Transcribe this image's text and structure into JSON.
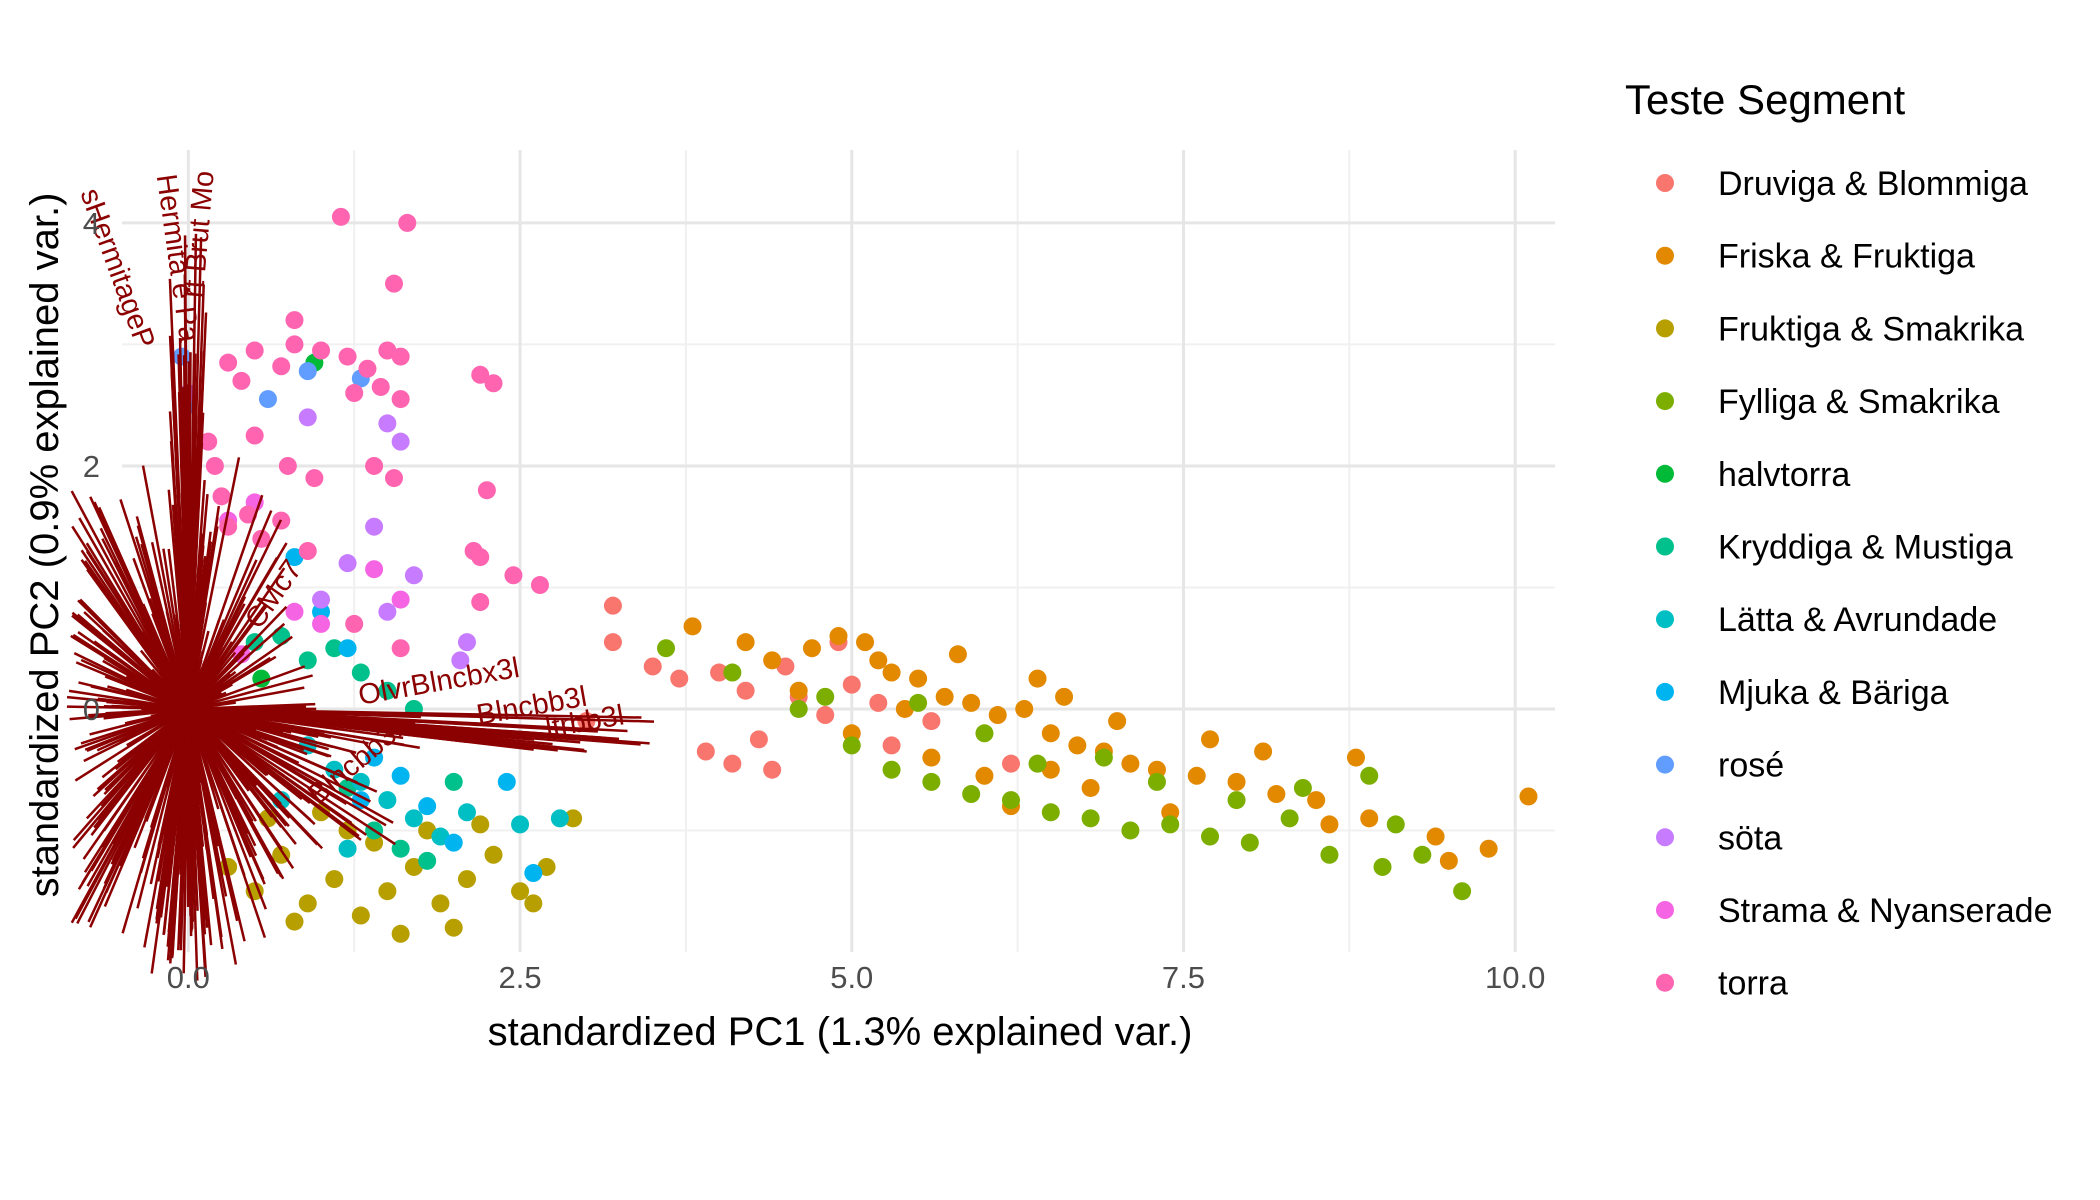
{
  "chart_data": {
    "type": "scatter",
    "title": "",
    "xlabel": "standardized PC1 (1.3% explained var.)",
    "ylabel": "standardized PC2 (0.9% explained var.)",
    "xlim": [
      -0.5,
      10.3
    ],
    "ylim": [
      -2.0,
      4.6
    ],
    "x_ticks": [
      0.0,
      2.5,
      5.0,
      7.5,
      10.0
    ],
    "x_tick_labels": [
      "0.0",
      "2.5",
      "5.0",
      "7.5",
      "10.0"
    ],
    "y_ticks": [
      0,
      2,
      4
    ],
    "y_tick_labels": [
      "0",
      "2",
      "4"
    ],
    "grid": true,
    "legend": {
      "title": "Teste Segment",
      "placement": "right"
    },
    "arrow_color": "#8B0000",
    "variable_labels": [
      {
        "text": "OlvrBlncbx3l",
        "x": 1.9,
        "y": 0.15,
        "angle": -10
      },
      {
        "text": "Blncbb3l",
        "x": 2.6,
        "y": -0.05,
        "angle": -10
      },
      {
        "text": "ltrbb3l",
        "x": 3.0,
        "y": -0.18,
        "angle": -10
      },
      {
        "text": "sHermitageP",
        "x": -0.6,
        "y": 3.6,
        "angle": 70
      },
      {
        "text": "Hermita e Pa",
        "x": -0.15,
        "y": 3.7,
        "angle": 82
      },
      {
        "text": "rt Brut Mo",
        "x": 0.15,
        "y": 3.9,
        "angle": -85
      },
      {
        "text": "CMc7",
        "x": 0.7,
        "y": 0.9,
        "angle": -55
      },
      {
        "text": "Blncbb3l",
        "x": 1.3,
        "y": -0.5,
        "angle": -40
      }
    ],
    "series": [
      {
        "name": "Druviga & Blommiga",
        "color": "#F8766D",
        "points": [
          [
            3.2,
            0.55
          ],
          [
            3.5,
            0.35
          ],
          [
            3.7,
            0.25
          ],
          [
            4.0,
            0.3
          ],
          [
            4.2,
            0.15
          ],
          [
            4.5,
            0.35
          ],
          [
            4.6,
            0.1
          ],
          [
            4.8,
            -0.05
          ],
          [
            5.0,
            0.2
          ],
          [
            5.3,
            -0.3
          ],
          [
            4.3,
            -0.25
          ],
          [
            4.1,
            -0.45
          ],
          [
            3.9,
            -0.35
          ],
          [
            5.6,
            -0.1
          ],
          [
            6.2,
            -0.45
          ],
          [
            5.2,
            0.05
          ],
          [
            3.2,
            0.85
          ],
          [
            4.9,
            0.55
          ],
          [
            3.0,
            -0.1
          ],
          [
            4.4,
            -0.5
          ]
        ]
      },
      {
        "name": "Friska & Fruktiga",
        "color": "#E38900",
        "points": [
          [
            3.8,
            0.68
          ],
          [
            4.2,
            0.55
          ],
          [
            4.4,
            0.4
          ],
          [
            4.7,
            0.5
          ],
          [
            4.9,
            0.6
          ],
          [
            5.1,
            0.55
          ],
          [
            5.3,
            0.3
          ],
          [
            5.5,
            0.25
          ],
          [
            5.7,
            0.1
          ],
          [
            5.9,
            0.05
          ],
          [
            6.1,
            -0.05
          ],
          [
            6.3,
            0.0
          ],
          [
            6.5,
            -0.2
          ],
          [
            6.7,
            -0.3
          ],
          [
            6.9,
            -0.35
          ],
          [
            7.1,
            -0.45
          ],
          [
            7.3,
            -0.5
          ],
          [
            7.6,
            -0.55
          ],
          [
            7.9,
            -0.6
          ],
          [
            8.2,
            -0.7
          ],
          [
            8.5,
            -0.75
          ],
          [
            8.9,
            -0.9
          ],
          [
            9.4,
            -1.05
          ],
          [
            9.8,
            -1.15
          ],
          [
            10.1,
            -0.72
          ],
          [
            8.8,
            -0.4
          ],
          [
            6.4,
            0.25
          ],
          [
            5.8,
            0.45
          ],
          [
            5.4,
            0.0
          ],
          [
            6.0,
            -0.55
          ],
          [
            6.8,
            -0.65
          ],
          [
            7.4,
            -0.85
          ],
          [
            5.6,
            -0.4
          ],
          [
            6.6,
            0.1
          ],
          [
            4.6,
            0.15
          ],
          [
            5.0,
            -0.2
          ],
          [
            7.0,
            -0.1
          ],
          [
            8.1,
            -0.35
          ],
          [
            6.2,
            -0.8
          ],
          [
            5.2,
            0.4
          ],
          [
            9.5,
            -1.25
          ],
          [
            8.6,
            -0.95
          ],
          [
            7.7,
            -0.25
          ],
          [
            6.5,
            -0.5
          ]
        ]
      },
      {
        "name": "Fruktiga & Smakrika",
        "color": "#B79F00",
        "points": [
          [
            0.3,
            -1.3
          ],
          [
            0.5,
            -1.5
          ],
          [
            0.7,
            -1.2
          ],
          [
            0.9,
            -1.6
          ],
          [
            1.1,
            -1.4
          ],
          [
            1.3,
            -1.7
          ],
          [
            1.5,
            -1.5
          ],
          [
            1.7,
            -1.3
          ],
          [
            1.9,
            -1.6
          ],
          [
            2.1,
            -1.4
          ],
          [
            2.3,
            -1.2
          ],
          [
            2.5,
            -1.5
          ],
          [
            2.7,
            -1.3
          ],
          [
            1.2,
            -1.0
          ],
          [
            1.4,
            -1.1
          ],
          [
            1.6,
            -1.85
          ],
          [
            0.8,
            -1.75
          ],
          [
            2.0,
            -1.8
          ],
          [
            2.6,
            -1.6
          ],
          [
            1.8,
            -1.0
          ],
          [
            2.2,
            -0.95
          ],
          [
            0.6,
            -0.9
          ],
          [
            1.0,
            -0.85
          ],
          [
            2.9,
            -0.9
          ]
        ]
      },
      {
        "name": "Fylliga & Smakrika",
        "color": "#7CAE00",
        "points": [
          [
            3.6,
            0.5
          ],
          [
            4.1,
            0.3
          ],
          [
            4.6,
            0.0
          ],
          [
            5.0,
            -0.3
          ],
          [
            5.3,
            -0.5
          ],
          [
            5.6,
            -0.6
          ],
          [
            5.9,
            -0.7
          ],
          [
            6.2,
            -0.75
          ],
          [
            6.5,
            -0.85
          ],
          [
            6.8,
            -0.9
          ],
          [
            7.1,
            -1.0
          ],
          [
            7.4,
            -0.95
          ],
          [
            7.7,
            -1.05
          ],
          [
            8.0,
            -1.1
          ],
          [
            8.3,
            -0.9
          ],
          [
            8.6,
            -1.2
          ],
          [
            9.0,
            -1.3
          ],
          [
            9.3,
            -1.2
          ],
          [
            9.6,
            -1.5
          ],
          [
            8.4,
            -0.65
          ],
          [
            6.0,
            -0.2
          ],
          [
            6.4,
            -0.45
          ],
          [
            7.3,
            -0.6
          ],
          [
            5.5,
            0.05
          ],
          [
            6.9,
            -0.4
          ],
          [
            7.9,
            -0.75
          ],
          [
            4.8,
            0.1
          ],
          [
            8.9,
            -0.55
          ],
          [
            9.1,
            -0.95
          ]
        ]
      },
      {
        "name": "halvtorra",
        "color": "#00BA38",
        "points": [
          [
            0.95,
            2.85
          ],
          [
            0.55,
            0.25
          ],
          [
            -0.05,
            0.05
          ]
        ]
      },
      {
        "name": "Kryddiga & Mustiga",
        "color": "#00C08B",
        "points": [
          [
            0.5,
            0.55
          ],
          [
            0.7,
            0.6
          ],
          [
            0.9,
            0.4
          ],
          [
            1.1,
            0.5
          ],
          [
            1.3,
            0.3
          ],
          [
            1.5,
            0.15
          ],
          [
            1.7,
            0.0
          ],
          [
            1.2,
            -0.65
          ],
          [
            1.4,
            -1.0
          ],
          [
            1.6,
            -1.15
          ],
          [
            1.8,
            -1.25
          ],
          [
            2.0,
            -0.6
          ],
          [
            0.0,
            -0.05
          ],
          [
            -0.05,
            0.1
          ]
        ]
      },
      {
        "name": "Lätta & Avrundade",
        "color": "#00BFC4",
        "points": [
          [
            0.9,
            -0.3
          ],
          [
            1.1,
            -0.5
          ],
          [
            1.3,
            -0.6
          ],
          [
            1.5,
            -0.75
          ],
          [
            1.7,
            -0.9
          ],
          [
            1.9,
            -1.05
          ],
          [
            2.1,
            -0.85
          ],
          [
            2.5,
            -0.95
          ],
          [
            2.8,
            -0.9
          ],
          [
            1.2,
            -1.15
          ],
          [
            0.7,
            -0.75
          ],
          [
            -0.05,
            -0.05
          ]
        ]
      },
      {
        "name": "Mjuka & Bäriga",
        "color": "#00B4EF",
        "points": [
          [
            0.8,
            1.25
          ],
          [
            1.0,
            0.8
          ],
          [
            1.2,
            0.5
          ],
          [
            1.4,
            -0.4
          ],
          [
            1.6,
            -0.55
          ],
          [
            1.8,
            -0.8
          ],
          [
            2.0,
            -1.1
          ],
          [
            2.4,
            -0.6
          ],
          [
            2.6,
            -1.35
          ],
          [
            1.3,
            -0.75
          ]
        ]
      },
      {
        "name": "rosé",
        "color": "#619CFF",
        "points": [
          [
            0.6,
            2.55
          ],
          [
            0.9,
            2.78
          ],
          [
            1.3,
            2.72
          ],
          [
            -0.05,
            2.9
          ],
          [
            0.0,
            2.5
          ]
        ]
      },
      {
        "name": "söta",
        "color": "#C77CFF",
        "points": [
          [
            0.9,
            2.4
          ],
          [
            1.5,
            2.35
          ],
          [
            1.6,
            2.2
          ],
          [
            1.4,
            1.5
          ],
          [
            1.2,
            1.2
          ],
          [
            1.7,
            1.1
          ],
          [
            1.0,
            0.9
          ],
          [
            2.1,
            0.55
          ],
          [
            2.05,
            0.4
          ],
          [
            1.5,
            0.8
          ],
          [
            0.0,
            2.6
          ]
        ]
      },
      {
        "name": "Strama & Nyanserade",
        "color": "#F564E3",
        "points": [
          [
            1.4,
            1.15
          ],
          [
            1.6,
            0.9
          ],
          [
            1.0,
            0.7
          ],
          [
            0.5,
            1.7
          ],
          [
            0.3,
            1.55
          ],
          [
            0.8,
            0.8
          ],
          [
            0.4,
            0.45
          ]
        ]
      },
      {
        "name": "torra",
        "color": "#FF64B0",
        "points": [
          [
            1.15,
            4.05
          ],
          [
            1.65,
            4.0
          ],
          [
            1.55,
            3.5
          ],
          [
            0.8,
            3.2
          ],
          [
            0.8,
            3.0
          ],
          [
            1.0,
            2.95
          ],
          [
            1.2,
            2.9
          ],
          [
            1.5,
            2.95
          ],
          [
            1.6,
            2.9
          ],
          [
            0.5,
            2.95
          ],
          [
            0.3,
            2.85
          ],
          [
            1.35,
            2.8
          ],
          [
            2.2,
            2.75
          ],
          [
            2.3,
            2.68
          ],
          [
            1.45,
            2.65
          ],
          [
            1.25,
            2.6
          ],
          [
            1.6,
            2.55
          ],
          [
            0.7,
            2.82
          ],
          [
            0.4,
            2.7
          ],
          [
            1.55,
            1.9
          ],
          [
            0.95,
            1.9
          ],
          [
            0.75,
            2.0
          ],
          [
            0.25,
            1.75
          ],
          [
            0.7,
            1.55
          ],
          [
            0.55,
            1.4
          ],
          [
            0.3,
            1.5
          ],
          [
            0.9,
            1.3
          ],
          [
            2.25,
            1.8
          ],
          [
            2.15,
            1.3
          ],
          [
            2.2,
            1.25
          ],
          [
            2.65,
            1.02
          ],
          [
            2.45,
            1.1
          ],
          [
            2.2,
            0.88
          ],
          [
            0.5,
            2.25
          ],
          [
            1.4,
            2.0
          ],
          [
            1.25,
            0.7
          ],
          [
            1.6,
            0.5
          ],
          [
            0.15,
            2.2
          ],
          [
            0.2,
            2.0
          ],
          [
            0.45,
            1.6
          ]
        ]
      }
    ]
  }
}
